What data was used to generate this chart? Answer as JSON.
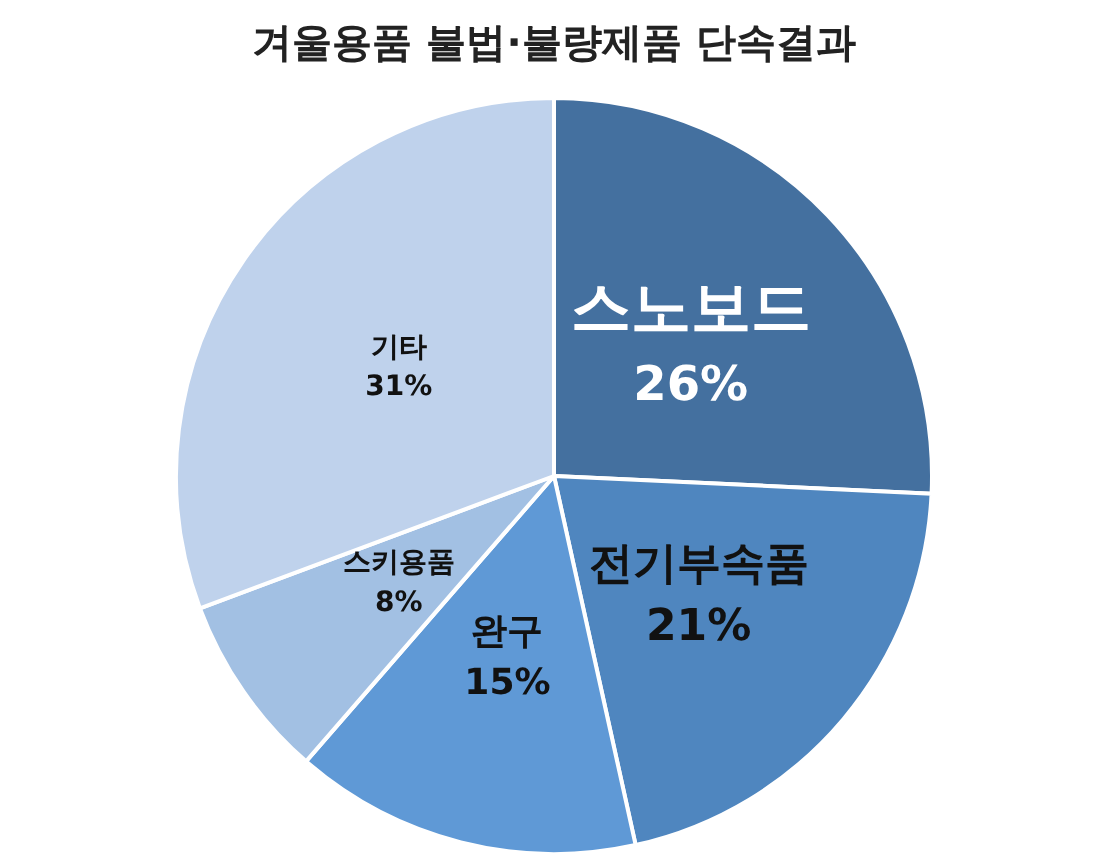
{
  "chart_data": {
    "type": "pie",
    "title": "겨울용품 불법·불량제품 단속결과",
    "categories": [
      "스노보드",
      "전기부속품",
      "완구",
      "스키용품",
      "기타"
    ],
    "values": [
      26,
      21,
      15,
      8,
      31
    ],
    "value_labels": [
      "26%",
      "21%",
      "15%",
      "8%",
      "31%"
    ],
    "colors": [
      "#44709f",
      "#4f86bf",
      "#5f99d6",
      "#a2c0e3",
      "#bfd2ec"
    ],
    "legend": false
  }
}
